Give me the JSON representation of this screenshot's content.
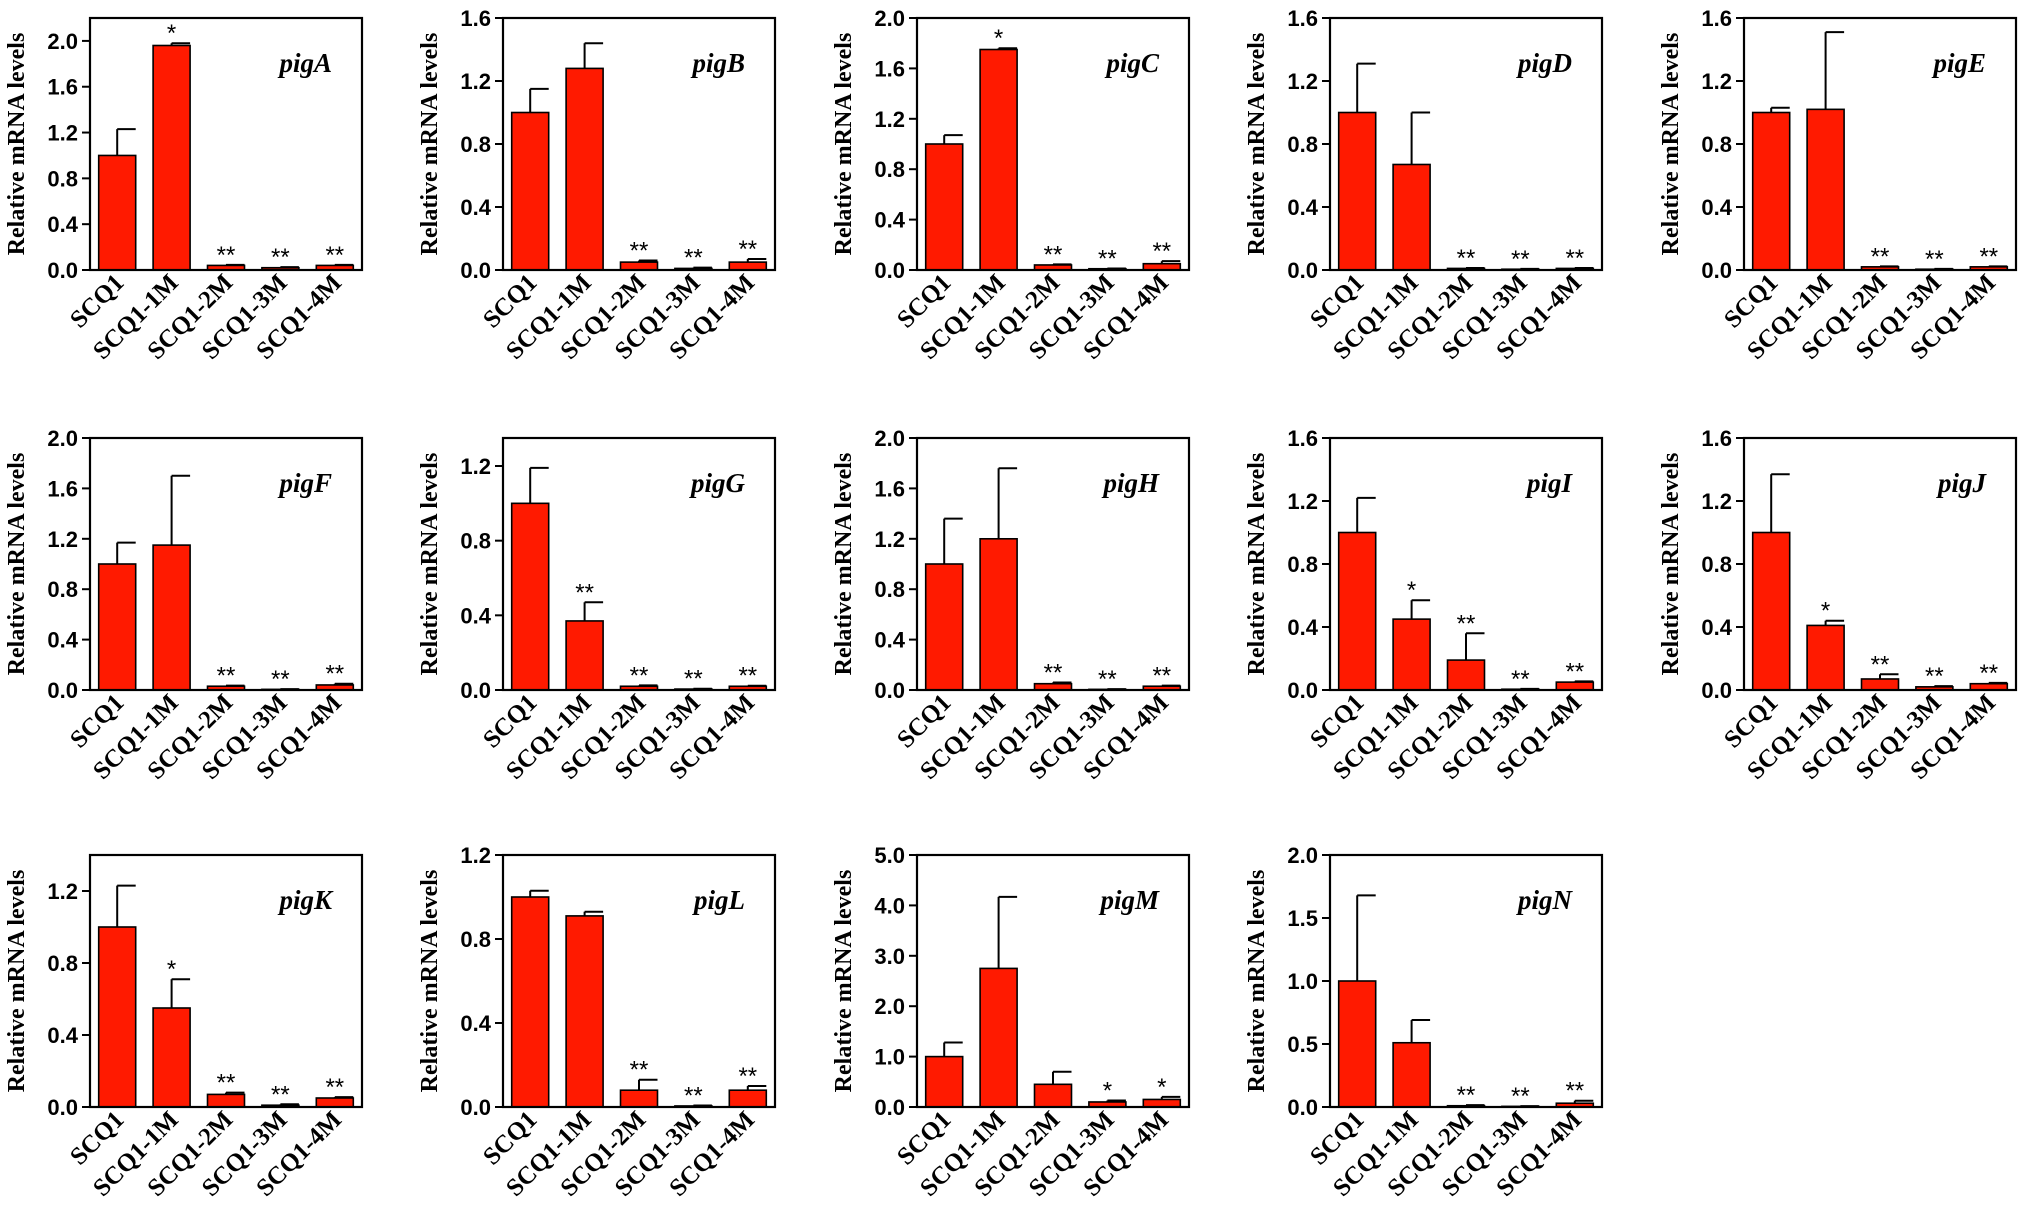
{
  "chart_data": [
    {
      "type": "bar",
      "title": "pigA",
      "ylabel": "Relative mRNA levels",
      "categories": [
        "SCQ1",
        "SCQ1-1M",
        "SCQ1-2M",
        "SCQ1-3M",
        "SCQ1-4M"
      ],
      "values": [
        1.0,
        1.96,
        0.04,
        0.02,
        0.04
      ],
      "errors": [
        0.23,
        0.02,
        0.005,
        0.005,
        0.005
      ],
      "significance": [
        "",
        "*",
        "**",
        "**",
        "**"
      ],
      "ylim": [
        0,
        2.2
      ],
      "yticks": [
        "0.0",
        "0.4",
        "0.8",
        "1.2",
        "1.6",
        "2.0"
      ],
      "bar_color": "#ff1a00"
    },
    {
      "type": "bar",
      "title": "pigB",
      "ylabel": "Relative mRNA levels",
      "categories": [
        "SCQ1",
        "SCQ1-1M",
        "SCQ1-2M",
        "SCQ1-3M",
        "SCQ1-4M"
      ],
      "values": [
        1.0,
        1.28,
        0.05,
        0.01,
        0.05
      ],
      "errors": [
        0.15,
        0.16,
        0.01,
        0.005,
        0.02
      ],
      "significance": [
        "",
        "",
        "**",
        "**",
        "**"
      ],
      "ylim": [
        0,
        1.6
      ],
      "yticks": [
        "0.0",
        "0.4",
        "0.8",
        "1.2",
        "1.6"
      ],
      "bar_color": "#ff1a00"
    },
    {
      "type": "bar",
      "title": "pigC",
      "ylabel": "Relative mRNA levels",
      "categories": [
        "SCQ1",
        "SCQ1-1M",
        "SCQ1-2M",
        "SCQ1-3M",
        "SCQ1-4M"
      ],
      "values": [
        1.0,
        1.75,
        0.04,
        0.01,
        0.05
      ],
      "errors": [
        0.07,
        0.01,
        0.005,
        0.002,
        0.02
      ],
      "significance": [
        "",
        "*",
        "**",
        "**",
        "**"
      ],
      "ylim": [
        0,
        2.0
      ],
      "yticks": [
        "0.0",
        "0.4",
        "0.8",
        "1.2",
        "1.6",
        "2.0"
      ],
      "bar_color": "#ff1a00"
    },
    {
      "type": "bar",
      "title": "pigD",
      "ylabel": "Relative mRNA levels",
      "categories": [
        "SCQ1",
        "SCQ1-1M",
        "SCQ1-2M",
        "SCQ1-3M",
        "SCQ1-4M"
      ],
      "values": [
        1.0,
        0.67,
        0.01,
        0.005,
        0.01
      ],
      "errors": [
        0.31,
        0.33,
        0.003,
        0.002,
        0.003
      ],
      "significance": [
        "",
        "",
        "**",
        "**",
        "**"
      ],
      "ylim": [
        0,
        1.6
      ],
      "yticks": [
        "0.0",
        "0.4",
        "0.8",
        "1.2",
        "1.6"
      ],
      "bar_color": "#ff1a00"
    },
    {
      "type": "bar",
      "title": "pigE",
      "ylabel": "Relative mRNA levels",
      "categories": [
        "SCQ1",
        "SCQ1-1M",
        "SCQ1-2M",
        "SCQ1-3M",
        "SCQ1-4M"
      ],
      "values": [
        1.0,
        1.02,
        0.02,
        0.005,
        0.02
      ],
      "errors": [
        0.03,
        0.49,
        0.003,
        0.002,
        0.003
      ],
      "significance": [
        "",
        "",
        "**",
        "**",
        "**"
      ],
      "ylim": [
        0,
        1.6
      ],
      "yticks": [
        "0.0",
        "0.4",
        "0.8",
        "1.2",
        "1.6"
      ],
      "bar_color": "#ff1a00"
    },
    {
      "type": "bar",
      "title": "pigF",
      "ylabel": "Relative mRNA levels",
      "categories": [
        "SCQ1",
        "SCQ1-1M",
        "SCQ1-2M",
        "SCQ1-3M",
        "SCQ1-4M"
      ],
      "values": [
        1.0,
        1.15,
        0.03,
        0.005,
        0.04
      ],
      "errors": [
        0.17,
        0.55,
        0.005,
        0.002,
        0.01
      ],
      "significance": [
        "",
        "",
        "**",
        "**",
        "**"
      ],
      "ylim": [
        0,
        2.0
      ],
      "yticks": [
        "0.0",
        "0.4",
        "0.8",
        "1.2",
        "1.6",
        "2.0"
      ],
      "bar_color": "#ff1a00"
    },
    {
      "type": "bar",
      "title": "pigG",
      "ylabel": "Relative mRNA levels",
      "categories": [
        "SCQ1",
        "SCQ1-1M",
        "SCQ1-2M",
        "SCQ1-3M",
        "SCQ1-4M"
      ],
      "values": [
        1.0,
        0.37,
        0.02,
        0.005,
        0.02
      ],
      "errors": [
        0.19,
        0.1,
        0.005,
        0.002,
        0.003
      ],
      "significance": [
        "",
        "**",
        "**",
        "**",
        "**"
      ],
      "ylim": [
        0,
        1.35
      ],
      "yticks": [
        "0.0",
        "0.4",
        "0.8",
        "1.2"
      ],
      "bar_color": "#ff1a00"
    },
    {
      "type": "bar",
      "title": "pigH",
      "ylabel": "Relative mRNA levels",
      "categories": [
        "SCQ1",
        "SCQ1-1M",
        "SCQ1-2M",
        "SCQ1-3M",
        "SCQ1-4M"
      ],
      "values": [
        1.0,
        1.2,
        0.05,
        0.005,
        0.03
      ],
      "errors": [
        0.36,
        0.56,
        0.01,
        0.002,
        0.005
      ],
      "significance": [
        "",
        "",
        "**",
        "**",
        "**"
      ],
      "ylim": [
        0,
        2.0
      ],
      "yticks": [
        "0.0",
        "0.4",
        "0.8",
        "1.2",
        "1.6",
        "2.0"
      ],
      "bar_color": "#ff1a00"
    },
    {
      "type": "bar",
      "title": "pigI",
      "ylabel": "Relative mRNA levels",
      "categories": [
        "SCQ1",
        "SCQ1-1M",
        "SCQ1-2M",
        "SCQ1-3M",
        "SCQ1-4M"
      ],
      "values": [
        1.0,
        0.45,
        0.19,
        0.005,
        0.05
      ],
      "errors": [
        0.22,
        0.12,
        0.17,
        0.002,
        0.005
      ],
      "significance": [
        "",
        "*",
        "**",
        "**",
        "**"
      ],
      "ylim": [
        0,
        1.6
      ],
      "yticks": [
        "0.0",
        "0.4",
        "0.8",
        "1.2",
        "1.6"
      ],
      "bar_color": "#ff1a00"
    },
    {
      "type": "bar",
      "title": "pigJ",
      "ylabel": "Relative mRNA levels",
      "categories": [
        "SCQ1",
        "SCQ1-1M",
        "SCQ1-2M",
        "SCQ1-3M",
        "SCQ1-4M"
      ],
      "values": [
        1.0,
        0.41,
        0.07,
        0.02,
        0.04
      ],
      "errors": [
        0.37,
        0.03,
        0.03,
        0.005,
        0.005
      ],
      "significance": [
        "",
        "*",
        "**",
        "**",
        "**"
      ],
      "ylim": [
        0,
        1.6
      ],
      "yticks": [
        "0.0",
        "0.4",
        "0.8",
        "1.2",
        "1.6"
      ],
      "bar_color": "#ff1a00"
    },
    {
      "type": "bar",
      "title": "pigK",
      "ylabel": "Relative mRNA levels",
      "categories": [
        "SCQ1",
        "SCQ1-1M",
        "SCQ1-2M",
        "SCQ1-3M",
        "SCQ1-4M"
      ],
      "values": [
        1.0,
        0.55,
        0.07,
        0.01,
        0.05
      ],
      "errors": [
        0.23,
        0.16,
        0.01,
        0.005,
        0.005
      ],
      "significance": [
        "",
        "*",
        "**",
        "**",
        "**"
      ],
      "ylim": [
        0,
        1.4
      ],
      "yticks": [
        "0.0",
        "0.4",
        "0.8",
        "1.2"
      ],
      "bar_color": "#ff1a00"
    },
    {
      "type": "bar",
      "title": "pigL",
      "ylabel": "Relative mRNA levels",
      "categories": [
        "SCQ1",
        "SCQ1-1M",
        "SCQ1-2M",
        "SCQ1-3M",
        "SCQ1-4M"
      ],
      "values": [
        1.0,
        0.91,
        0.08,
        0.005,
        0.08
      ],
      "errors": [
        0.03,
        0.02,
        0.05,
        0.002,
        0.02
      ],
      "significance": [
        "",
        "",
        "**",
        "**",
        "**"
      ],
      "ylim": [
        0,
        1.2
      ],
      "yticks": [
        "0.0",
        "0.4",
        "0.8",
        "1.2"
      ],
      "bar_color": "#ff1a00"
    },
    {
      "type": "bar",
      "title": "pigM",
      "ylabel": "Relative mRNA levels",
      "categories": [
        "SCQ1",
        "SCQ1-1M",
        "SCQ1-2M",
        "SCQ1-3M",
        "SCQ1-4M"
      ],
      "values": [
        1.0,
        2.75,
        0.45,
        0.1,
        0.15
      ],
      "errors": [
        0.28,
        1.42,
        0.25,
        0.03,
        0.05
      ],
      "significance": [
        "",
        "",
        "",
        "*",
        "*"
      ],
      "ylim": [
        0,
        5.0
      ],
      "yticks": [
        "0.0",
        "1.0",
        "2.0",
        "3.0",
        "4.0",
        "5.0"
      ],
      "bar_color": "#ff1a00"
    },
    {
      "type": "bar",
      "title": "pigN",
      "ylabel": "Relative mRNA levels",
      "categories": [
        "SCQ1",
        "SCQ1-1M",
        "SCQ1-2M",
        "SCQ1-3M",
        "SCQ1-4M"
      ],
      "values": [
        1.0,
        0.51,
        0.01,
        0.005,
        0.03
      ],
      "errors": [
        0.68,
        0.18,
        0.005,
        0.002,
        0.02
      ],
      "significance": [
        "",
        "",
        "**",
        "**",
        "**"
      ],
      "ylim": [
        0,
        2.0
      ],
      "yticks": [
        "0.0",
        "0.5",
        "1.0",
        "1.5",
        "2.0"
      ],
      "bar_color": "#ff1a00"
    }
  ]
}
